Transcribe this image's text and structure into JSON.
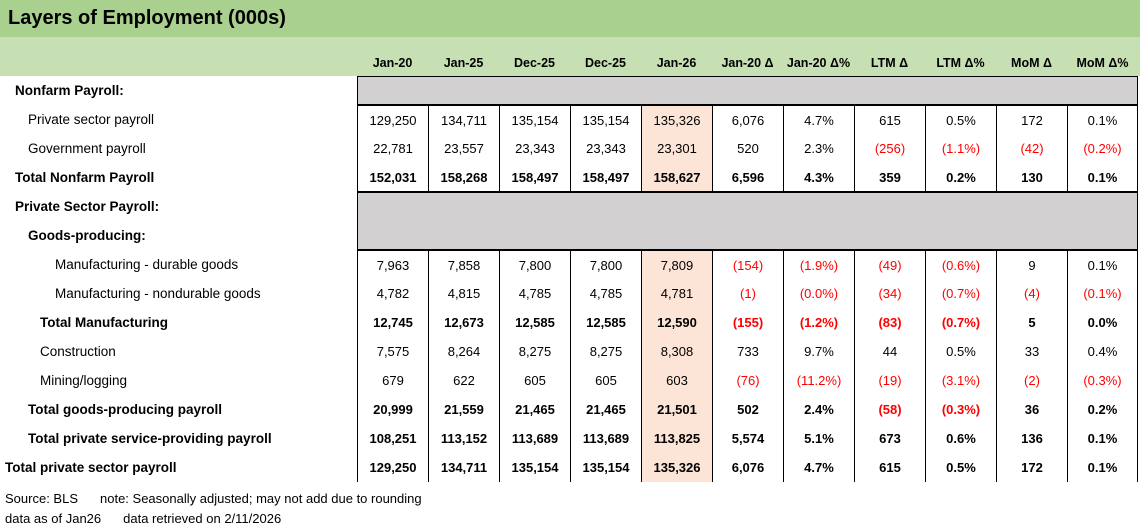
{
  "title": "Layers of Employment (000s)",
  "columns": [
    "Jan-20",
    "Jan-25",
    "Dec-25",
    "Dec-25",
    "Jan-26",
    "Jan-20 Δ",
    "Jan-20 Δ%",
    "LTM Δ",
    "LTM Δ%",
    "MoM Δ",
    "MoM Δ%"
  ],
  "highlight_column_index": 4,
  "rows": [
    {
      "label": "Nonfarm Payroll:",
      "type": "section",
      "level": 1,
      "values": []
    },
    {
      "label": "Private sector payroll",
      "type": "data",
      "level": 2,
      "values": [
        "129,250",
        "134,711",
        "135,154",
        "135,154",
        "135,326",
        "6,076",
        "4.7%",
        "615",
        "0.5%",
        "172",
        "0.1%"
      ]
    },
    {
      "label": "Government payroll",
      "type": "data",
      "level": 2,
      "values": [
        "22,781",
        "23,557",
        "23,343",
        "23,343",
        "23,301",
        "520",
        "2.3%",
        "(256)",
        "(1.1%)",
        "(42)",
        "(0.2%)"
      ]
    },
    {
      "label": "Total Nonfarm Payroll",
      "type": "total",
      "level": 1,
      "values": [
        "152,031",
        "158,268",
        "158,497",
        "158,497",
        "158,627",
        "6,596",
        "4.3%",
        "359",
        "0.2%",
        "130",
        "0.1%"
      ]
    },
    {
      "label": "Private Sector Payroll:",
      "type": "section",
      "level": 1,
      "values": []
    },
    {
      "label": "Goods-producing:",
      "type": "section",
      "level": 2,
      "values": []
    },
    {
      "label": "Manufacturing - durable goods",
      "type": "data",
      "level": 4,
      "values": [
        "7,963",
        "7,858",
        "7,800",
        "7,800",
        "7,809",
        "(154)",
        "(1.9%)",
        "(49)",
        "(0.6%)",
        "9",
        "0.1%"
      ]
    },
    {
      "label": "Manufacturing - nondurable goods",
      "type": "data",
      "level": 4,
      "values": [
        "4,782",
        "4,815",
        "4,785",
        "4,785",
        "4,781",
        "(1)",
        "(0.0%)",
        "(34)",
        "(0.7%)",
        "(4)",
        "(0.1%)"
      ]
    },
    {
      "label": "Total Manufacturing",
      "type": "total",
      "level": 3,
      "values": [
        "12,745",
        "12,673",
        "12,585",
        "12,585",
        "12,590",
        "(155)",
        "(1.2%)",
        "(83)",
        "(0.7%)",
        "5",
        "0.0%"
      ]
    },
    {
      "label": "Construction",
      "type": "data",
      "level": 3,
      "values": [
        "7,575",
        "8,264",
        "8,275",
        "8,275",
        "8,308",
        "733",
        "9.7%",
        "44",
        "0.5%",
        "33",
        "0.4%"
      ]
    },
    {
      "label": "Mining/logging",
      "type": "data",
      "level": 3,
      "values": [
        "679",
        "622",
        "605",
        "605",
        "603",
        "(76)",
        "(11.2%)",
        "(19)",
        "(3.1%)",
        "(2)",
        "(0.3%)"
      ]
    },
    {
      "label": "Total goods-producing payroll",
      "type": "total",
      "level": 2,
      "values": [
        "20,999",
        "21,559",
        "21,465",
        "21,465",
        "21,501",
        "502",
        "2.4%",
        "(58)",
        "(0.3%)",
        "36",
        "0.2%"
      ]
    },
    {
      "label": "Total private service-providing payroll",
      "type": "total",
      "level": 2,
      "values": [
        "108,251",
        "113,152",
        "113,689",
        "113,689",
        "113,825",
        "5,574",
        "5.1%",
        "673",
        "0.6%",
        "136",
        "0.1%"
      ]
    },
    {
      "label": "Total private sector payroll",
      "type": "total",
      "level": 0,
      "values": [
        "129,250",
        "134,711",
        "135,154",
        "135,154",
        "135,326",
        "6,076",
        "4.7%",
        "615",
        "0.5%",
        "172",
        "0.1%"
      ]
    }
  ],
  "footer": {
    "source": "Source: BLS",
    "note": "note: Seasonally adjusted; may not add due to rounding",
    "as_of": "data as of Jan26",
    "retrieved": "data retrieved on 2/11/2026"
  },
  "colors": {
    "title_bg": "#A9D08E",
    "header_bg": "#C6E0B4",
    "section_bg": "#D2D0D0",
    "highlight_bg": "#FCE4D6",
    "negative": "#FF0000",
    "border": "#000000"
  }
}
